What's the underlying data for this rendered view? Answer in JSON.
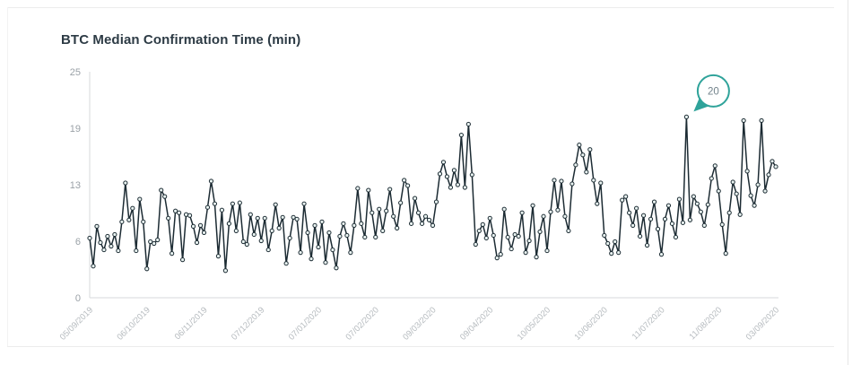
{
  "chart": {
    "title": "BTC Median Confirmation Time (min)"
  },
  "chart_data": {
    "type": "line",
    "title": "BTC Median Confirmation Time (min)",
    "ylabel": "",
    "xlabel": "",
    "ylim": [
      0,
      25
    ],
    "grid": false,
    "legend_position": "none",
    "y_tick_labels": [
      "0",
      "6",
      "13",
      "19",
      "25"
    ],
    "x_tick_labels": [
      "05/09/2019",
      "06/10/2019",
      "06/11/2019",
      "07/12/2019",
      "07/01/2020",
      "07/02/2020",
      "09/03/2020",
      "09/04/2020",
      "10/05/2020",
      "10/06/2020",
      "11/07/2020",
      "11/08/2020",
      "03/09/2020"
    ],
    "values": [
      6.6,
      3.5,
      7.9,
      6.1,
      5.3,
      6.8,
      5.7,
      7.0,
      5.2,
      8.4,
      12.7,
      8.6,
      9.9,
      5.2,
      10.9,
      8.4,
      3.2,
      6.2,
      6.0,
      6.4,
      11.9,
      11.2,
      8.8,
      4.9,
      9.6,
      9.4,
      4.2,
      9.2,
      9.1,
      7.9,
      6.1,
      8.0,
      7.2,
      10.0,
      12.9,
      10.4,
      4.6,
      9.7,
      3.0,
      8.2,
      10.4,
      7.4,
      10.5,
      6.2,
      5.9,
      9.2,
      7.0,
      8.8,
      6.3,
      8.8,
      5.3,
      7.4,
      10.3,
      7.7,
      8.9,
      3.8,
      6.6,
      8.9,
      8.7,
      5.0,
      10.4,
      7.2,
      4.3,
      8.0,
      5.6,
      8.4,
      3.9,
      7.2,
      5.3,
      3.3,
      6.8,
      8.2,
      6.9,
      5.0,
      8.0,
      12.1,
      8.2,
      6.7,
      11.9,
      9.4,
      6.7,
      9.8,
      7.4,
      9.6,
      12.0,
      9.0,
      7.7,
      10.5,
      13.0,
      12.4,
      8.2,
      11.0,
      9.4,
      8.2,
      9.0,
      8.6,
      8.0,
      10.6,
      13.7,
      15.0,
      13.4,
      12.2,
      14.1,
      12.5,
      18.0,
      12.2,
      19.2,
      13.6,
      5.9,
      7.4,
      8.1,
      6.6,
      8.8,
      6.9,
      4.4,
      4.8,
      9.8,
      6.7,
      5.4,
      7.0,
      6.8,
      9.4,
      5.0,
      6.3,
      10.2,
      4.5,
      7.3,
      9.0,
      5.2,
      9.5,
      13.0,
      9.7,
      12.9,
      9.0,
      7.4,
      12.6,
      14.7,
      16.9,
      15.8,
      13.9,
      16.4,
      13.0,
      10.4,
      12.7,
      6.9,
      6.0,
      4.9,
      6.2,
      5.0,
      10.8,
      11.2,
      9.4,
      8.0,
      9.9,
      6.8,
      9.1,
      5.8,
      8.7,
      10.6,
      7.6,
      4.8,
      8.7,
      10.2,
      8.2,
      6.7,
      10.9,
      8.3,
      20.0,
      8.6,
      11.2,
      10.4,
      9.5,
      8.0,
      10.3,
      13.2,
      14.6,
      11.8,
      8.1,
      4.9,
      9.4,
      12.8,
      11.5,
      9.2,
      19.6,
      14.0,
      11.3,
      10.2,
      12.5,
      19.6,
      11.8,
      13.6,
      15.1,
      14.5
    ],
    "annotation": {
      "label": "20",
      "point_index": 167
    },
    "colors": {
      "line": "#1c2b33",
      "marker_fill": "#e9f3f1",
      "accent_teal": "#2fa39a",
      "axis_line": "#d7dadb",
      "y_tick_text": "#9aa1a7",
      "x_tick_text": "#b6bbbf",
      "title_text": "#2d3b45",
      "tooltip_text": "#72838b"
    }
  }
}
